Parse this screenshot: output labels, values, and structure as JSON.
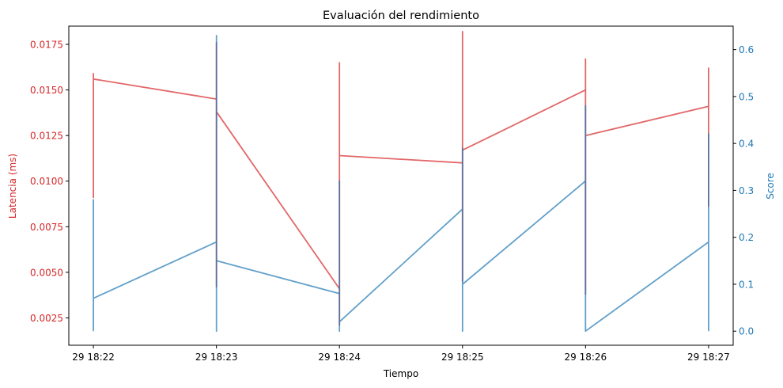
{
  "chart_data": {
    "type": "line",
    "title": "Evaluación del rendimiento",
    "xlabel": "Tiempo",
    "x_ticks": [
      "29 18:22",
      "29 18:23",
      "29 18:24",
      "29 18:25",
      "29 18:26",
      "29 18:27"
    ],
    "xlim_minutes": [
      -0.2,
      5.2
    ],
    "grid": false,
    "legend": "none",
    "y_left": {
      "label": "Latencia (ms)",
      "color": "#d62728",
      "lim": [
        0.001,
        0.0185
      ],
      "ticks": [
        "0.0025",
        "0.0050",
        "0.0075",
        "0.0100",
        "0.0125",
        "0.0150",
        "0.0175"
      ],
      "tick_values": [
        0.0025,
        0.005,
        0.0075,
        0.01,
        0.0125,
        0.015,
        0.0175
      ]
    },
    "y_right": {
      "label": "Score",
      "color": "#1f77b4",
      "lim": [
        -0.03,
        0.65
      ],
      "ticks": [
        "0.0",
        "0.1",
        "0.2",
        "0.3",
        "0.4",
        "0.5",
        "0.6"
      ],
      "tick_values": [
        0,
        0.1,
        0.2,
        0.3,
        0.4,
        0.5,
        0.6
      ]
    },
    "series": [
      {
        "axis": "left",
        "color": "#d62728",
        "points": [
          {
            "x": 0,
            "y": 0.0139
          },
          {
            "x": 0,
            "y": 0.0159
          },
          {
            "x": 0,
            "y": 0.0091
          },
          {
            "x": 0,
            "y": 0.0156
          },
          {
            "x": 1,
            "y": 0.0145
          },
          {
            "x": 1,
            "y": 0.0176
          },
          {
            "x": 1,
            "y": 0.0042
          },
          {
            "x": 1,
            "y": 0.0138
          },
          {
            "x": 2,
            "y": 0.0041
          },
          {
            "x": 2,
            "y": 0.0165
          },
          {
            "x": 2,
            "y": 0.0021
          },
          {
            "x": 2,
            "y": 0.0114
          },
          {
            "x": 3,
            "y": 0.011
          },
          {
            "x": 3,
            "y": 0.0182
          },
          {
            "x": 3,
            "y": 0.0045
          },
          {
            "x": 3,
            "y": 0.0117
          },
          {
            "x": 4,
            "y": 0.015
          },
          {
            "x": 4,
            "y": 0.0167
          },
          {
            "x": 4,
            "y": 0.0038
          },
          {
            "x": 4,
            "y": 0.0125
          },
          {
            "x": 5,
            "y": 0.0141
          },
          {
            "x": 5,
            "y": 0.0162
          },
          {
            "x": 5,
            "y": 0.0086
          }
        ]
      },
      {
        "axis": "right",
        "color": "#1f77b4",
        "points": [
          {
            "x": 0,
            "y": 0.0
          },
          {
            "x": 0,
            "y": 0.28
          },
          {
            "x": 0,
            "y": 0.07
          },
          {
            "x": 1,
            "y": 0.19
          },
          {
            "x": 1,
            "y": 0.63
          },
          {
            "x": 1,
            "y": 0.0
          },
          {
            "x": 1,
            "y": 0.15
          },
          {
            "x": 2,
            "y": 0.08
          },
          {
            "x": 2,
            "y": 0.32
          },
          {
            "x": 2,
            "y": 0.0
          },
          {
            "x": 2,
            "y": 0.02
          },
          {
            "x": 3,
            "y": 0.26
          },
          {
            "x": 3,
            "y": 0.39
          },
          {
            "x": 3,
            "y": 0.0
          },
          {
            "x": 3,
            "y": 0.1
          },
          {
            "x": 4,
            "y": 0.32
          },
          {
            "x": 4,
            "y": 0.48
          },
          {
            "x": 4,
            "y": 0.0
          },
          {
            "x": 5,
            "y": 0.19
          },
          {
            "x": 5,
            "y": 0.42
          },
          {
            "x": 5,
            "y": 0.0
          }
        ]
      }
    ]
  }
}
